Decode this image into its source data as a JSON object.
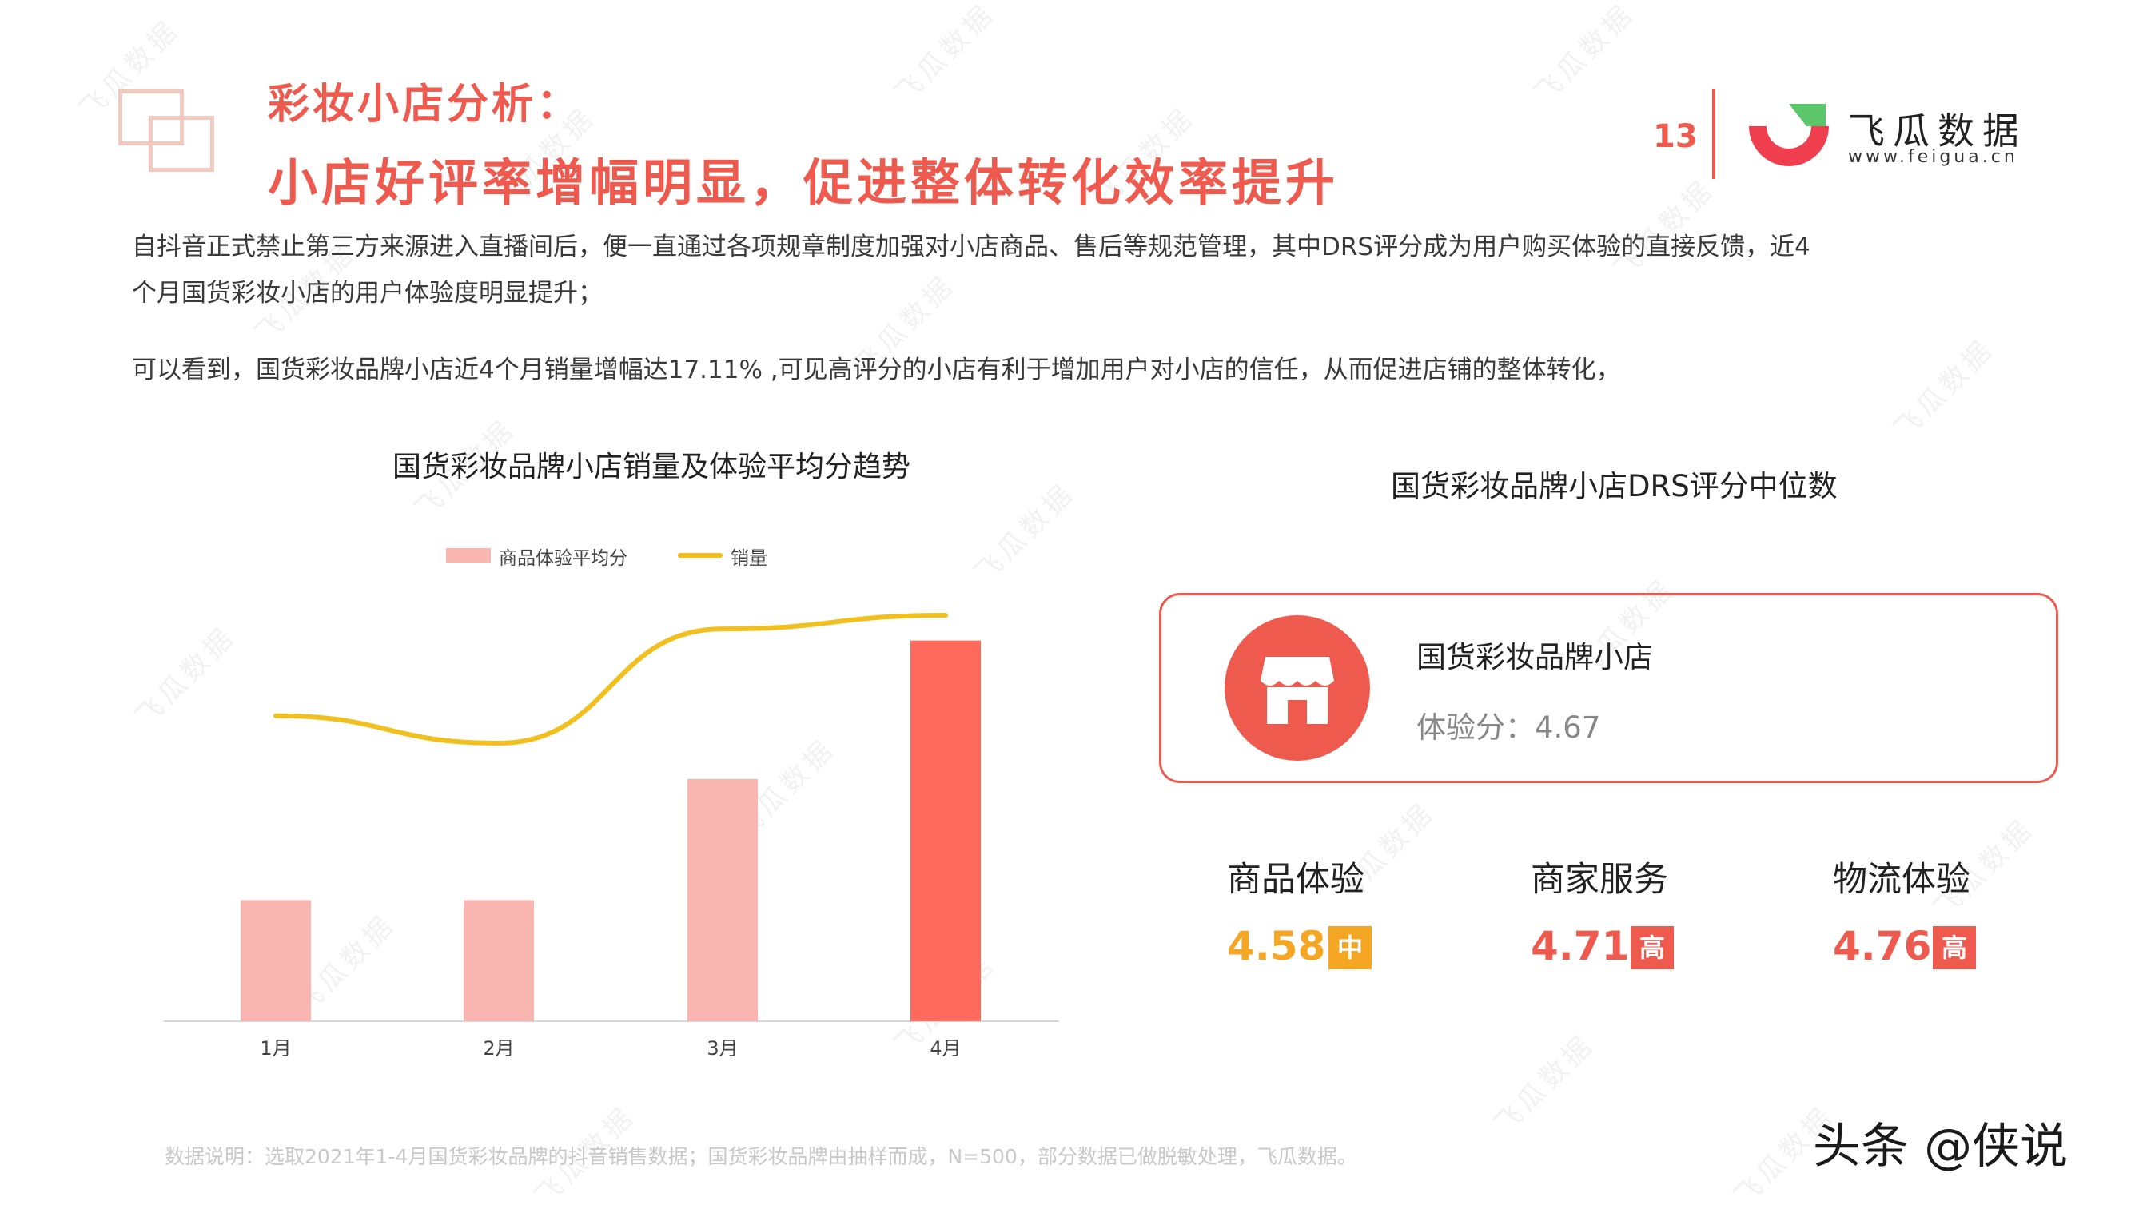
{
  "header": {
    "title_small": "彩妆小店分析：",
    "title_big": "小店好评率增幅明显，促进整体转化效率提升",
    "page_number": "13",
    "brand_name": "飞瓜数据",
    "brand_url": "www.feigua.cn"
  },
  "paragraphs": {
    "p1_line1": "自抖音正式禁止第三方来源进入直播间后，便一直通过各项规章制度加强对小店商品、售后等规范管理，其中DRS评分成为用户购买体验的直接反馈，近4",
    "p1_line2": "个月国货彩妆小店的用户体验度明显提升；",
    "p2": "可以看到，国货彩妆品牌小店近4个月销量增幅达17.11% ,可见高评分的小店有利于增加用户对小店的信任，从而促进店铺的整体转化，"
  },
  "chart_data": {
    "type": "bar",
    "title": "国货彩妆品牌小店销量及体验平均分趋势",
    "categories": [
      "1月",
      "2月",
      "3月",
      "4月"
    ],
    "series": [
      {
        "name": "商品体验平均分",
        "type": "bar",
        "values": [
          4.44,
          4.44,
          4.58,
          4.74
        ],
        "color": "#f9b5b0",
        "highlight_color": "#ff6a5c"
      },
      {
        "name": "销量",
        "type": "line",
        "values": [
          0.78,
          0.72,
          0.97,
          1.0
        ],
        "color": "#f2c01e"
      }
    ],
    "bar_ylim": [
      4.3,
      4.76
    ],
    "line_ylim": [
      0,
      1.06
    ],
    "legend": "top-center",
    "grid": false
  },
  "drs_panel": {
    "title": "国货彩妆品牌小店DRS评分中位数",
    "store_name": "国货彩妆品牌小店",
    "experience_score": "体验分：4.67",
    "store_icon": "store-icon",
    "metrics": [
      {
        "label": "商品体验",
        "value": "4.58",
        "level": "中",
        "color": "#f5a623"
      },
      {
        "label": "商家服务",
        "value": "4.71",
        "level": "高",
        "color": "#ef5a4f"
      },
      {
        "label": "物流体验",
        "value": "4.76",
        "level": "高",
        "color": "#ef5a4f"
      }
    ]
  },
  "footnote": "数据说明：选取2021年1-4月国货彩妆品牌的抖音销售数据；国货彩妆品牌由抽样而成，N=500，部分数据已做脱敏处理，飞瓜数据。",
  "source_mark": "头条 @侠说",
  "watermark": "飞瓜数据",
  "colors": {
    "accent": "#ef5a4f",
    "bar_light": "#f9b5b0",
    "bar_dark": "#ff6a5c",
    "line": "#f2c01e",
    "badge_mid": "#f5a623"
  }
}
